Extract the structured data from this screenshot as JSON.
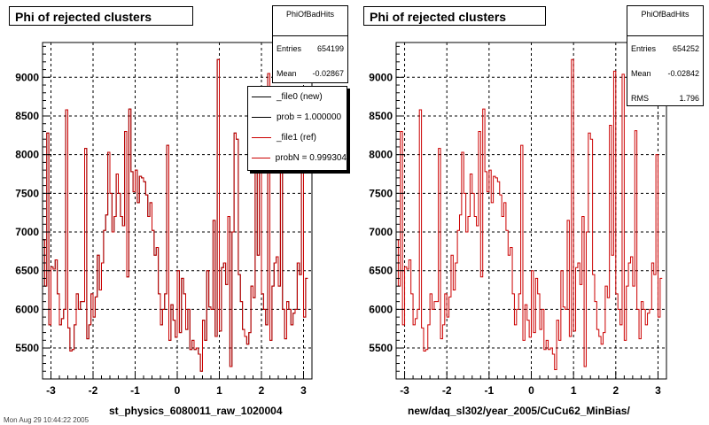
{
  "footer_text": "Mon Aug 29 10:44:22 2005",
  "left": {
    "title": "Phi of rejected clusters",
    "stats": {
      "name": "PhiOfBadHits",
      "rows": [
        {
          "label": "Entries",
          "value": "654199"
        },
        {
          "label": "Mean",
          "value": "-0.02867"
        }
      ]
    },
    "legend": [
      {
        "label": "_file0 (new)",
        "color": "#000000"
      },
      {
        "label": "prob = 1.000000",
        "color": "#000000"
      },
      {
        "label": "_file1 (ref)",
        "color": "#cc0000"
      },
      {
        "label": "probN = 0.999304",
        "color": "#cc0000"
      }
    ],
    "xtitle": "st_physics_6080011_raw_1020004"
  },
  "right": {
    "title": "Phi of rejected clusters",
    "stats": {
      "name": "PhiOfBadHits",
      "rows": [
        {
          "label": "Entries",
          "value": "654252"
        },
        {
          "label": "Mean",
          "value": "-0.02842"
        },
        {
          "label": "RMS",
          "value": "1.796"
        }
      ]
    },
    "xtitle": "new/daq_sl302/year_2005/CuCu62_MinBias/"
  },
  "chart_data": [
    {
      "type": "line",
      "title": "Phi of rejected clusters",
      "xlabel": "st_physics_6080011_raw_1020004",
      "ylabel": "",
      "xlim": [
        -3.2,
        3.2
      ],
      "ylim": [
        5100,
        9450
      ],
      "xticks": [
        -3,
        -2,
        -1,
        0,
        1,
        2,
        3
      ],
      "yticks": [
        5500,
        6000,
        6500,
        7000,
        7500,
        8000,
        8500,
        9000
      ],
      "grid": true,
      "series": [
        {
          "name": "_file0 (new)",
          "color": "#000000"
        },
        {
          "name": "_file1 (ref)",
          "color": "#cc0000"
        }
      ],
      "x_start": -3.2,
      "bin_width": 0.05,
      "values": [
        6900,
        6300,
        8280,
        5800,
        6550,
        6520,
        6640,
        6200,
        5800,
        5880,
        6000,
        8580,
        5760,
        5460,
        5480,
        5800,
        6200,
        6000,
        6100,
        6100,
        8080,
        5620,
        5800,
        6200,
        5900,
        6160,
        6700,
        6250,
        6600,
        7020,
        7220,
        8030,
        7500,
        7000,
        7200,
        7750,
        7500,
        7200,
        7080,
        8300,
        6420,
        8590,
        7780,
        7520,
        7800,
        7380,
        7720,
        7700,
        7650,
        7480,
        7200,
        7380,
        7020,
        6700,
        6800,
        6200,
        5800,
        6000,
        6200,
        8120,
        5600,
        6060,
        5860,
        5640,
        6500,
        5700,
        6400,
        6200,
        5740,
        6000,
        5480,
        5600,
        5480,
        5500,
        5420,
        5200,
        5860,
        5600,
        6500,
        6030,
        6000,
        7150,
        5650,
        9230,
        5720,
        6540,
        6600,
        6320,
        7200,
        5260,
        7000,
        8280,
        8200,
        6450,
        6100,
        5740,
        5650,
        5550,
        5700,
        6300,
        6150,
        8380,
        6700,
        8860,
        6200,
        6000,
        5800,
        9050,
        5600,
        6300,
        6600,
        6680,
        6300,
        8310,
        6000,
        5620,
        6100,
        6000,
        5800,
        5950,
        6000,
        6600,
        6450,
        8000,
        5900,
        6400
      ]
    },
    {
      "type": "line",
      "title": "Phi of rejected clusters",
      "xlabel": "new/daq_sl302/year_2005/CuCu62_MinBias/",
      "ylabel": "",
      "xlim": [
        -3.2,
        3.2
      ],
      "ylim": [
        5100,
        9450
      ],
      "xticks": [
        -3,
        -2,
        -1,
        0,
        1,
        2,
        3
      ],
      "yticks": [
        5500,
        6000,
        6500,
        7000,
        7500,
        8000,
        8500,
        9000
      ],
      "grid": true,
      "series": [
        {
          "name": "PhiOfBadHits",
          "color": "#cc0000"
        }
      ],
      "x_start": -3.2,
      "bin_width": 0.05,
      "values": [
        6900,
        6300,
        8300,
        5800,
        6550,
        6520,
        6640,
        6200,
        5800,
        5880,
        6000,
        8580,
        5760,
        5460,
        5480,
        5800,
        6200,
        6000,
        6100,
        6100,
        8080,
        5620,
        5800,
        6200,
        5900,
        6160,
        6700,
        6250,
        6600,
        7020,
        7220,
        8030,
        7500,
        7000,
        7200,
        7750,
        7500,
        7200,
        7080,
        8300,
        6420,
        8590,
        7780,
        7520,
        7800,
        7380,
        7720,
        7700,
        7650,
        7480,
        7200,
        7380,
        7020,
        6700,
        6800,
        6200,
        5800,
        6000,
        6200,
        8120,
        5600,
        6060,
        5860,
        5640,
        6500,
        5700,
        6400,
        6200,
        5740,
        6000,
        5480,
        5600,
        5480,
        5500,
        5420,
        5220,
        5860,
        5600,
        6500,
        6030,
        6000,
        7150,
        5650,
        9230,
        5720,
        6540,
        6600,
        6320,
        7200,
        5260,
        7000,
        8280,
        8200,
        6450,
        6100,
        5740,
        5650,
        5550,
        5700,
        6300,
        6150,
        8380,
        6700,
        9080,
        6200,
        6000,
        5800,
        9040,
        5600,
        6300,
        6600,
        6680,
        6300,
        8310,
        6000,
        5620,
        6100,
        6000,
        5800,
        5950,
        6000,
        6600,
        6450,
        8000,
        5900,
        6400
      ]
    }
  ]
}
